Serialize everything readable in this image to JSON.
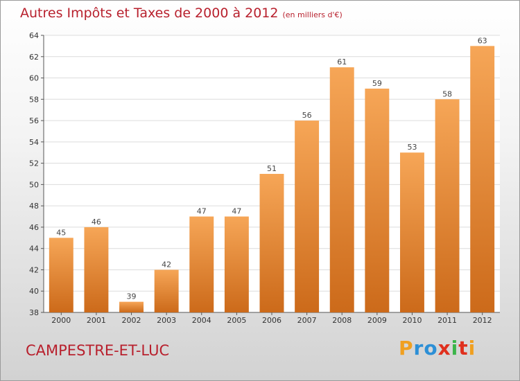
{
  "header": {
    "title": "Autres Impôts et Taxes de 2000 à 2012",
    "subtitle": "(en milliers d'€)"
  },
  "footer": {
    "place": "CAMPESTRE-ET-LUC",
    "brand_letters": [
      "P",
      "r",
      "o",
      "x",
      "i",
      "t",
      "i"
    ],
    "brand_colors": [
      "#f0a020",
      "#2c8fd6",
      "#2c8fd6",
      "#e0301e",
      "#3bb54a",
      "#e0301e",
      "#f0a020"
    ]
  },
  "colors": {
    "bar_light": "#f6a657",
    "bar_dark": "#cc6a1a",
    "grid": "#dcdcdc",
    "axis": "#555555",
    "title": "#b8202d"
  },
  "chart_data": {
    "type": "bar",
    "title": "Autres Impôts et Taxes de 2000 à 2012",
    "subtitle": "(en milliers d'€)",
    "xlabel": "",
    "ylabel": "",
    "categories": [
      "2000",
      "2001",
      "2002",
      "2003",
      "2004",
      "2005",
      "2006",
      "2007",
      "2008",
      "2009",
      "2010",
      "2011",
      "2012"
    ],
    "values": [
      45,
      46,
      39,
      42,
      47,
      47,
      51,
      56,
      61,
      59,
      53,
      58,
      63
    ],
    "ylim": [
      38,
      64
    ],
    "yticks": [
      38,
      40,
      42,
      44,
      46,
      48,
      50,
      52,
      54,
      56,
      58,
      60,
      62,
      64
    ],
    "grid": true,
    "legend": "none"
  }
}
